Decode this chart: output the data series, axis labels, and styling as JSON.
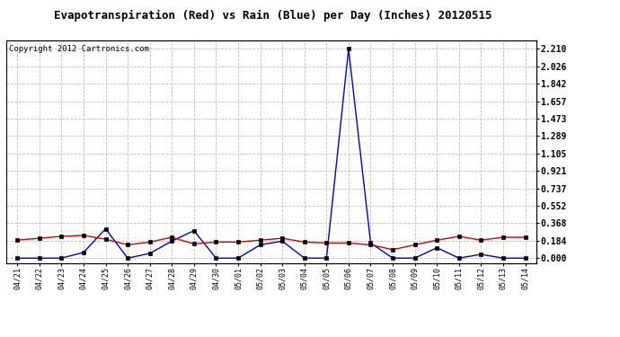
{
  "title": "Evapotranspiration (Red) vs Rain (Blue) per Day (Inches) 20120515",
  "copyright": "Copyright 2012 Cartronics.com",
  "dates": [
    "04/21",
    "04/22",
    "04/23",
    "04/24",
    "04/25",
    "04/26",
    "04/27",
    "04/28",
    "04/29",
    "04/30",
    "05/01",
    "05/02",
    "05/03",
    "05/04",
    "05/05",
    "05/06",
    "05/07",
    "05/08",
    "05/09",
    "05/10",
    "05/11",
    "05/12",
    "05/13",
    "05/14"
  ],
  "rain_blue": [
    0.0,
    0.0,
    0.0,
    0.06,
    0.31,
    0.0,
    0.05,
    0.18,
    0.29,
    0.0,
    0.0,
    0.14,
    0.18,
    0.0,
    0.0,
    2.21,
    0.16,
    0.0,
    0.0,
    0.11,
    0.0,
    0.04,
    0.0,
    0.0
  ],
  "et_red": [
    0.19,
    0.21,
    0.23,
    0.24,
    0.2,
    0.14,
    0.17,
    0.22,
    0.15,
    0.17,
    0.17,
    0.19,
    0.21,
    0.17,
    0.16,
    0.16,
    0.14,
    0.09,
    0.14,
    0.19,
    0.23,
    0.19,
    0.22,
    0.22
  ],
  "yticks": [
    0.0,
    0.184,
    0.368,
    0.552,
    0.737,
    0.921,
    1.105,
    1.289,
    1.473,
    1.657,
    1.842,
    2.026,
    2.21
  ],
  "ymax": 2.3,
  "ymin": -0.05,
  "bg_color": "#ffffff",
  "plot_bg": "#ffffff",
  "grid_color": "#bbbbbb",
  "blue_color": "#0000cc",
  "red_color": "#cc0000",
  "title_fontsize": 9,
  "copyright_fontsize": 6.5
}
